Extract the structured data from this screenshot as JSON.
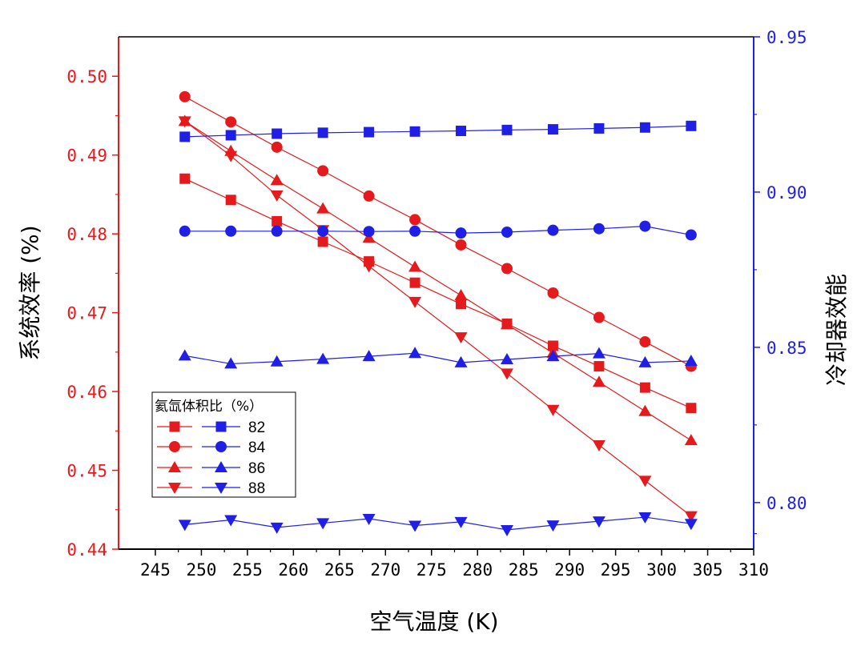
{
  "chart_data": {
    "type": "line",
    "title": "",
    "xlabel": "空气温度 (K)",
    "ylabel_left": "系统效率 (%)",
    "ylabel_right": "冷却器效能",
    "xlim": [
      241,
      310
    ],
    "ylim_left": [
      0.44,
      0.505
    ],
    "ylim_right": [
      0.785,
      0.95
    ],
    "x_ticks": [
      245,
      250,
      255,
      260,
      265,
      270,
      275,
      280,
      285,
      290,
      295,
      300,
      305,
      310
    ],
    "y_left_ticks": [
      "0.44",
      "0.45",
      "0.46",
      "0.47",
      "0.48",
      "0.49",
      "0.50"
    ],
    "y_right_ticks": [
      "0.80",
      "0.85",
      "0.90",
      "0.95"
    ],
    "grid": false,
    "legend_position": "lower-left",
    "legend_title": "氦氙体积比（%）",
    "legend_entries": [
      "82",
      "84",
      "86",
      "88"
    ],
    "colors": {
      "left": "#e41a1c",
      "right": "#1f1fe6"
    },
    "x": [
      248.2,
      253.2,
      258.2,
      263.2,
      268.2,
      273.2,
      278.2,
      283.2,
      288.2,
      293.2,
      298.2,
      303.2
    ],
    "series_left": [
      {
        "name": "82",
        "marker": "square",
        "values": [
          0.487,
          0.4843,
          0.4816,
          0.479,
          0.4765,
          0.4738,
          0.4711,
          0.4686,
          0.4658,
          0.4632,
          0.4605,
          0.4579
        ]
      },
      {
        "name": "84",
        "marker": "circle",
        "values": [
          0.4974,
          0.4942,
          0.491,
          0.488,
          0.4848,
          0.4818,
          0.4786,
          0.4756,
          0.4725,
          0.4694,
          0.4663,
          0.4632
        ]
      },
      {
        "name": "86",
        "marker": "triangle-up",
        "values": [
          0.4943,
          0.4905,
          0.4868,
          0.4832,
          0.4795,
          0.4758,
          0.4722,
          0.4685,
          0.4649,
          0.4612,
          0.4575,
          0.4538
        ]
      },
      {
        "name": "88",
        "marker": "triangle-down",
        "values": [
          0.4943,
          0.4899,
          0.4849,
          0.4805,
          0.4759,
          0.4714,
          0.4669,
          0.4623,
          0.4577,
          0.4532,
          0.4487,
          0.4442
        ]
      }
    ],
    "series_right": [
      {
        "name": "82",
        "marker": "square",
        "values": [
          0.9178,
          0.9183,
          0.9188,
          0.9191,
          0.9193,
          0.9195,
          0.9197,
          0.92,
          0.9202,
          0.9205,
          0.9208,
          0.9213
        ]
      },
      {
        "name": "84",
        "marker": "circle",
        "values": [
          0.8874,
          0.8874,
          0.8874,
          0.8874,
          0.8873,
          0.8874,
          0.8868,
          0.8871,
          0.8877,
          0.8882,
          0.889,
          0.8862
        ]
      },
      {
        "name": "86",
        "marker": "triangle-up",
        "values": [
          0.8473,
          0.8447,
          0.8454,
          0.8462,
          0.8471,
          0.8481,
          0.8451,
          0.8461,
          0.8471,
          0.848,
          0.8451,
          0.8456
        ]
      },
      {
        "name": "88",
        "marker": "triangle-down",
        "values": [
          0.7929,
          0.7944,
          0.792,
          0.7934,
          0.7948,
          0.7926,
          0.7938,
          0.7912,
          0.7927,
          0.794,
          0.7953,
          0.7932
        ]
      }
    ]
  }
}
